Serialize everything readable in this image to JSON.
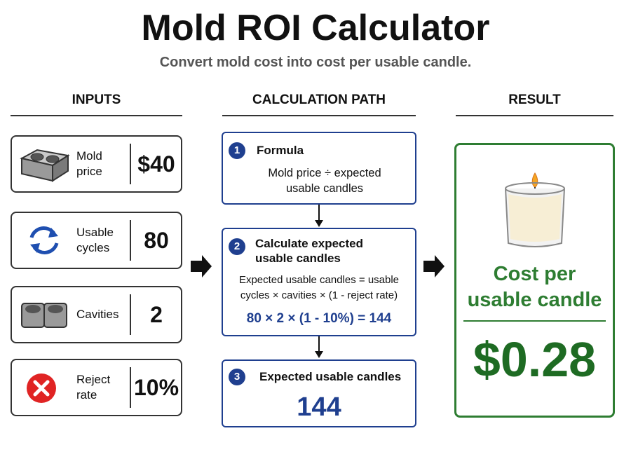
{
  "header": {
    "title": "Mold ROI Calculator",
    "subtitle": "Convert mold cost into cost per usable candle."
  },
  "inputs": {
    "heading": "INPUTS",
    "items": [
      {
        "label": "Mold price",
        "value": "$40"
      },
      {
        "label": "Usable cycles",
        "value": "80"
      },
      {
        "label": "Cavities",
        "value": "2"
      },
      {
        "label": "Reject rate",
        "value": "10%"
      }
    ]
  },
  "calculation": {
    "heading": "CALCULATION PATH",
    "steps": [
      {
        "number": "1",
        "title": "Formula",
        "text": "Mold price ÷ expected usable candles"
      },
      {
        "number": "2",
        "title": "Calculate expected usable candles",
        "text": "Expected usable candles = usable cycles × cavities × (1 - reject rate)",
        "equation": "80 × 2 × (1 - 10%) = 144"
      },
      {
        "number": "3",
        "title": "Expected usable candles",
        "result": "144"
      }
    ]
  },
  "result": {
    "heading": "RESULT",
    "label": "Cost per usable candle",
    "value": "$0.28"
  }
}
